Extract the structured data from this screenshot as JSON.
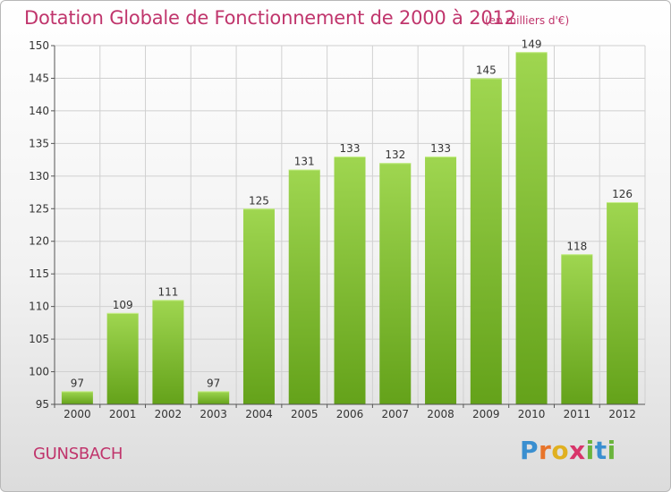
{
  "header": {
    "title": "Dotation Globale de Fonctionnement de 2000 à 2012",
    "subtitle": "(en milliers d'€)"
  },
  "footer": {
    "city": "GUNSBACH",
    "logo_text": "Proxiti"
  },
  "colors": {
    "title": "#c0356c",
    "bar_light": "#9fd650",
    "bar_dark": "#64a21a",
    "grid": "#d0d0d0",
    "axis": "#555555"
  },
  "chart_data": {
    "type": "bar",
    "categories": [
      "2000",
      "2001",
      "2002",
      "2003",
      "2004",
      "2005",
      "2006",
      "2007",
      "2008",
      "2009",
      "2010",
      "2011",
      "2012"
    ],
    "values": [
      97,
      109,
      111,
      97,
      125,
      131,
      133,
      132,
      133,
      145,
      149,
      118,
      126
    ],
    "data_labels": [
      "97",
      "109",
      "111",
      "97",
      "125",
      "131",
      "133",
      "132",
      "133",
      "145",
      "149",
      "118",
      "126"
    ],
    "title": "Dotation Globale de Fonctionnement de 2000 à 2012",
    "subtitle": "(en milliers d'€)",
    "xlabel": "",
    "ylabel": "",
    "ylim": [
      95,
      150
    ],
    "yticks": [
      95,
      100,
      105,
      110,
      115,
      120,
      125,
      130,
      135,
      140,
      145,
      150
    ],
    "grid": true
  }
}
